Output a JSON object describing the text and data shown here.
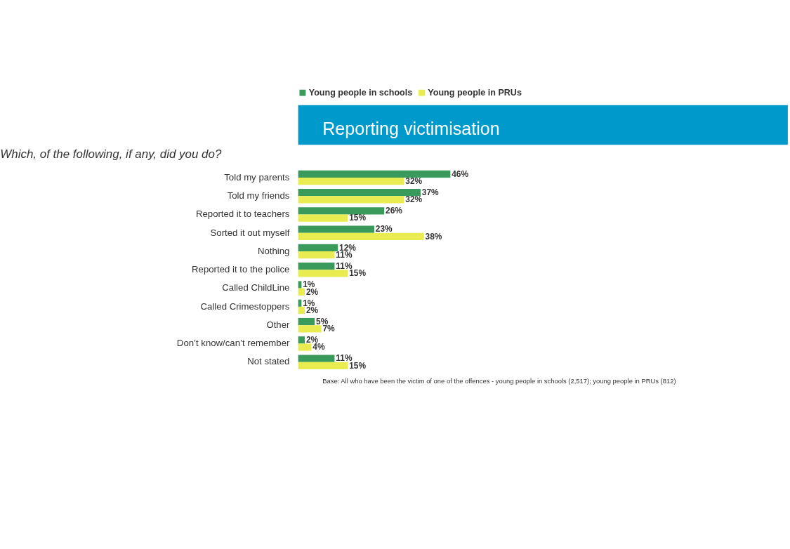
{
  "chart_data": {
    "type": "bar",
    "orientation": "horizontal",
    "title": "Reporting victimisation",
    "subtitle": "Which, of the following, if any, did you do?",
    "categories": [
      "Told my parents",
      "Told my friends",
      "Reported it to teachers",
      "Sorted it out myself",
      "Nothing",
      "Reported it to the police",
      "Called ChildLine",
      "Called Crimestoppers",
      "Other",
      "Don’t know/can’t remember",
      "Not stated"
    ],
    "series": [
      {
        "name": "Young people in schools",
        "color": "#3a9a5b",
        "values": [
          46,
          37,
          26,
          23,
          12,
          11,
          1,
          1,
          5,
          2,
          11
        ],
        "value_labels": [
          "46%",
          "37%",
          "26%",
          "23%",
          "12%",
          "11%",
          "1%",
          "1%",
          "5%",
          "2%",
          "11%"
        ]
      },
      {
        "name": "Young people in PRUs",
        "color": "#e8ec50",
        "values": [
          32,
          32,
          15,
          38,
          11,
          15,
          2,
          2,
          7,
          4,
          15
        ],
        "value_labels": [
          "32%",
          "32%",
          "15%",
          "38%",
          "11%",
          "15%",
          "2%",
          "2%",
          "7%",
          "4%",
          "15%"
        ]
      }
    ],
    "legend": "top right",
    "annotations": [
      "Base: All who have been the victim of one of the offences - young people in schools (2,517); young people in PRUs (812)"
    ]
  }
}
